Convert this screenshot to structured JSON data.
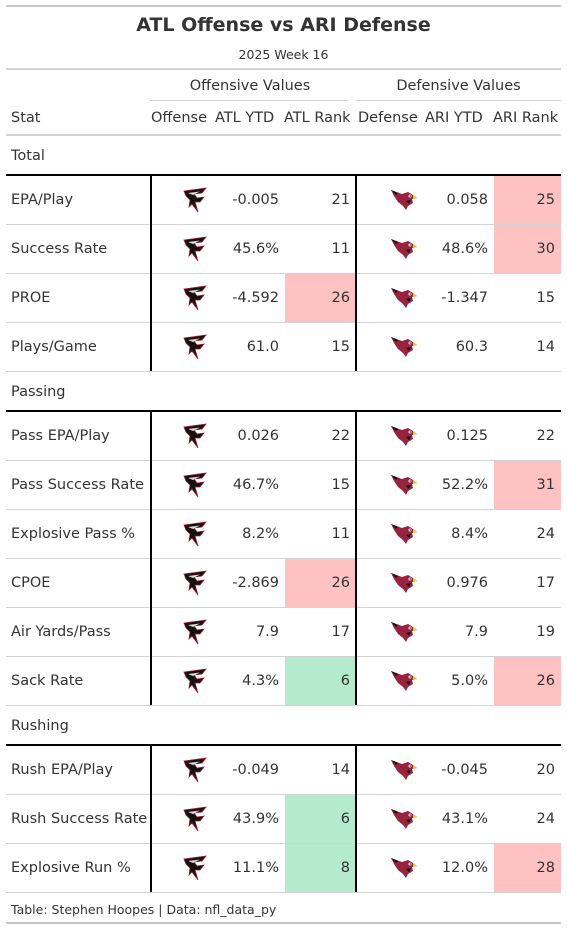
{
  "title": "ATL Offense vs ARI Defense",
  "subtitle": "2025 Week 16",
  "spanners": {
    "offense": "Offensive Values",
    "defense": "Defensive Values"
  },
  "columns": {
    "stat": "Stat",
    "offense": "Offense",
    "off_ytd": "ATL YTD",
    "off_rank": "ATL Rank",
    "defense": "Defense",
    "def_ytd": "ARI YTD",
    "def_rank": "ARI Rank"
  },
  "colors": {
    "bad_rank": "#ffc2c2",
    "good_rank": "#b3ebcc",
    "falcons_red": "#a71930",
    "cardinals_red": "#97233f"
  },
  "icons": {
    "offense_logo": "falcon-logo-icon",
    "defense_logo": "cardinal-logo-icon"
  },
  "groups": [
    {
      "label": "Total",
      "rows": [
        {
          "stat": "EPA/Play",
          "off_ytd": "-0.005",
          "off_rank": "21",
          "off_hl": "",
          "def_ytd": "0.058",
          "def_rank": "25",
          "def_hl": "red"
        },
        {
          "stat": "Success Rate",
          "off_ytd": "45.6%",
          "off_rank": "11",
          "off_hl": "",
          "def_ytd": "48.6%",
          "def_rank": "30",
          "def_hl": "red"
        },
        {
          "stat": "PROE",
          "off_ytd": "-4.592",
          "off_rank": "26",
          "off_hl": "red",
          "def_ytd": "-1.347",
          "def_rank": "15",
          "def_hl": ""
        },
        {
          "stat": "Plays/Game",
          "off_ytd": "61.0",
          "off_rank": "15",
          "off_hl": "",
          "def_ytd": "60.3",
          "def_rank": "14",
          "def_hl": ""
        }
      ]
    },
    {
      "label": "Passing",
      "rows": [
        {
          "stat": "Pass EPA/Play",
          "off_ytd": "0.026",
          "off_rank": "22",
          "off_hl": "",
          "def_ytd": "0.125",
          "def_rank": "22",
          "def_hl": ""
        },
        {
          "stat": "Pass Success Rate",
          "off_ytd": "46.7%",
          "off_rank": "15",
          "off_hl": "",
          "def_ytd": "52.2%",
          "def_rank": "31",
          "def_hl": "red"
        },
        {
          "stat": "Explosive Pass %",
          "off_ytd": "8.2%",
          "off_rank": "11",
          "off_hl": "",
          "def_ytd": "8.4%",
          "def_rank": "24",
          "def_hl": ""
        },
        {
          "stat": "CPOE",
          "off_ytd": "-2.869",
          "off_rank": "26",
          "off_hl": "red",
          "def_ytd": "0.976",
          "def_rank": "17",
          "def_hl": ""
        },
        {
          "stat": "Air Yards/Pass",
          "off_ytd": "7.9",
          "off_rank": "17",
          "off_hl": "",
          "def_ytd": "7.9",
          "def_rank": "19",
          "def_hl": ""
        },
        {
          "stat": "Sack Rate",
          "off_ytd": "4.3%",
          "off_rank": "6",
          "off_hl": "green",
          "def_ytd": "5.0%",
          "def_rank": "26",
          "def_hl": "red"
        }
      ]
    },
    {
      "label": "Rushing",
      "rows": [
        {
          "stat": "Rush EPA/Play",
          "off_ytd": "-0.049",
          "off_rank": "14",
          "off_hl": "",
          "def_ytd": "-0.045",
          "def_rank": "20",
          "def_hl": ""
        },
        {
          "stat": "Rush Success Rate",
          "off_ytd": "43.9%",
          "off_rank": "6",
          "off_hl": "green",
          "def_ytd": "43.1%",
          "def_rank": "24",
          "def_hl": ""
        },
        {
          "stat": "Explosive Run %",
          "off_ytd": "11.1%",
          "off_rank": "8",
          "off_hl": "green",
          "def_ytd": "12.0%",
          "def_rank": "28",
          "def_hl": "red"
        }
      ]
    }
  ],
  "footer": "Table: Stephen Hoopes | Data: nfl_data_py"
}
